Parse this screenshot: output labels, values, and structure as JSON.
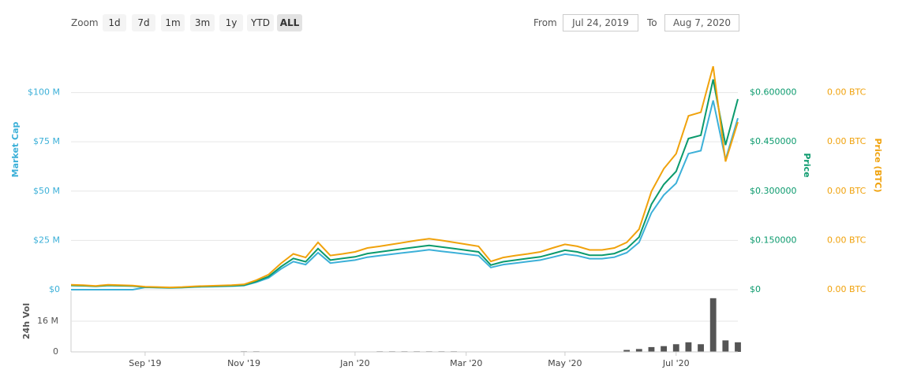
{
  "controls": {
    "zoom_label": "Zoom",
    "zoom_options": [
      "1d",
      "7d",
      "1m",
      "3m",
      "1y",
      "YTD",
      "ALL"
    ],
    "selected": "ALL",
    "from_label": "From",
    "from": "Jul 24, 2019",
    "to_label": "To",
    "to": "Aug 7, 2020"
  },
  "chart_data": [
    {
      "type": "line",
      "categories": [
        null,
        null,
        null,
        null,
        null,
        null,
        "Sep '19",
        null,
        null,
        null,
        null,
        null,
        null,
        null,
        "Nov '19",
        null,
        null,
        null,
        null,
        null,
        null,
        null,
        null,
        "Jan '20",
        null,
        null,
        null,
        null,
        null,
        null,
        null,
        null,
        "Mar '20",
        null,
        null,
        null,
        null,
        null,
        null,
        null,
        "May '20",
        null,
        null,
        null,
        null,
        null,
        null,
        null,
        null,
        "Jul '20",
        null,
        null,
        null,
        null,
        null
      ],
      "ylabel": "Market Cap",
      "y2label": "Price",
      "y3label": "Price (BTC)",
      "ylim": [
        0,
        115000000
      ],
      "yticks": [
        {
          "value": 0,
          "label": "$0"
        },
        {
          "value": 25000000,
          "label": "$25 M"
        },
        {
          "value": 50000000,
          "label": "$50 M"
        },
        {
          "value": 75000000,
          "label": "$75 M"
        },
        {
          "value": 100000000,
          "label": "$100 M"
        }
      ],
      "y2lim": [
        0,
        0.69
      ],
      "y2ticks": [
        {
          "value": 0,
          "label": "$0"
        },
        {
          "value": 0.15,
          "label": "$0.150000"
        },
        {
          "value": 0.3,
          "label": "$0.300000"
        },
        {
          "value": 0.45,
          "label": "$0.450000"
        },
        {
          "value": 0.6,
          "label": "$0.600000"
        }
      ],
      "y3lim": [
        0,
        6.9e-05
      ],
      "y3ticks": [
        {
          "value": 0,
          "label": "0.00 BTC"
        },
        {
          "value": 1.5e-05,
          "label": "0.00 BTC"
        },
        {
          "value": 3e-05,
          "label": "0.00 BTC"
        },
        {
          "value": 4.5e-05,
          "label": "0.00 BTC"
        },
        {
          "value": 6e-05,
          "label": "0.00 BTC"
        }
      ],
      "grid": true,
      "series": [
        {
          "name": "Market Cap",
          "color": "#3cb0d8",
          "axis": "y",
          "values": [
            0,
            0,
            0,
            0,
            0,
            0,
            1200000,
            1050000,
            900000,
            1050000,
            1350000,
            1500000,
            1650000,
            1800000,
            2100000,
            3750000,
            6000000,
            10500000,
            14250000,
            12750000,
            18750000,
            13500000,
            14250000,
            15000000,
            16500000,
            17250000,
            18000000,
            18750000,
            19500000,
            20250000,
            19500000,
            18750000,
            18000000,
            17250000,
            11250000,
            12750000,
            13500000,
            14250000,
            15000000,
            16500000,
            18000000,
            17250000,
            15750000,
            15750000,
            16500000,
            18750000,
            24000000,
            39000000,
            48000000,
            54000000,
            69000000,
            70500000,
            96000000,
            66000000,
            87000000
          ]
        },
        {
          "name": "Price",
          "color": "#0b9a6d",
          "axis": "y2",
          "values": [
            0.013,
            0.012,
            0.01,
            0.013,
            0.012,
            0.011,
            0.008,
            0.007,
            0.006,
            0.007,
            0.009,
            0.01,
            0.011,
            0.012,
            0.014,
            0.025,
            0.04,
            0.07,
            0.095,
            0.085,
            0.125,
            0.09,
            0.095,
            0.1,
            0.11,
            0.115,
            0.12,
            0.125,
            0.13,
            0.135,
            0.13,
            0.125,
            0.12,
            0.115,
            0.075,
            0.085,
            0.09,
            0.095,
            0.1,
            0.11,
            0.12,
            0.115,
            0.105,
            0.105,
            0.11,
            0.125,
            0.16,
            0.26,
            0.32,
            0.36,
            0.46,
            0.47,
            0.64,
            0.44,
            0.58
          ]
        },
        {
          "name": "Price (BTC)",
          "color": "#f0a20c",
          "axis": "y3",
          "values": [
            1.5e-06,
            1.38e-06,
            1.15e-06,
            1.5e-06,
            1.38e-06,
            1.27e-06,
            9.2e-07,
            8.1e-07,
            6.9e-07,
            8.1e-07,
            1.04e-06,
            1.15e-06,
            1.27e-06,
            1.38e-06,
            1.61e-06,
            2.9e-06,
            4.6e-06,
            8e-06,
            1.09e-05,
            9.8e-06,
            1.44e-05,
            1.04e-05,
            1.09e-05,
            1.15e-05,
            1.27e-05,
            1.32e-05,
            1.38e-05,
            1.44e-05,
            1.5e-05,
            1.55e-05,
            1.5e-05,
            1.44e-05,
            1.38e-05,
            1.32e-05,
            8.6e-06,
            9.8e-06,
            1.04e-05,
            1.09e-05,
            1.15e-05,
            1.27e-05,
            1.38e-05,
            1.32e-05,
            1.21e-05,
            1.21e-05,
            1.27e-05,
            1.44e-05,
            1.84e-05,
            2.99e-05,
            3.68e-05,
            4.14e-05,
            5.29e-05,
            5.4e-05,
            6.8e-05,
            3.9e-05,
            5.1e-05
          ]
        }
      ]
    },
    {
      "type": "bar",
      "ylabel": "24h Vol",
      "color": "#555555",
      "ylim": [
        0,
        30800000
      ],
      "yticks": [
        0,
        {
          "value": 16000000,
          "label": "16 M"
        }
      ],
      "values": [
        0,
        0,
        0,
        0,
        0,
        0,
        0,
        0,
        0,
        0,
        0,
        0,
        0,
        0,
        300000,
        300000,
        0,
        0,
        0,
        0,
        0,
        0,
        0,
        200000,
        200000,
        300000,
        300000,
        300000,
        300000,
        300000,
        300000,
        300000,
        200000,
        0,
        0,
        0,
        0,
        0,
        0,
        0,
        100000,
        0,
        0,
        0,
        0,
        1000000,
        1500000,
        2500000,
        3000000,
        4000000,
        5000000,
        4000000,
        28000000,
        6000000,
        5000000
      ]
    }
  ]
}
